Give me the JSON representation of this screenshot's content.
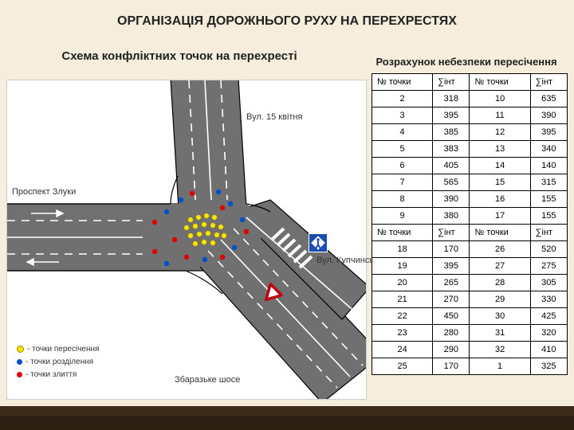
{
  "title": "ОРГАНІЗАЦІЯ ДОРОЖНЬОГО РУХУ НА ПЕРЕХРЕСТЯХ",
  "subtitle_left": "Схема конфліктних точок на перехресті",
  "subtitle_right": "Розрахунок небезпеки пересічення",
  "colors": {
    "page_bg": "#f6eddc",
    "road": "#707070",
    "road_edge": "#000000",
    "lane_line": "#ffffff",
    "point_crossing": "#f6e600",
    "point_diverge": "#0050c8",
    "point_merge": "#e00000",
    "sign_blue": "#1a4db3",
    "table_border": "#000000"
  },
  "streets": {
    "north": "Вул. 15 квітня",
    "west": "Проспект Злуки",
    "east": "Вул. Купчинського",
    "south": "Збаразьке шосе"
  },
  "legend": {
    "crossing": "- точки пересічення",
    "diverge": "- точки розділення",
    "merge": "- точки злиття"
  },
  "table": {
    "headers": [
      "№ точки",
      "∑інт",
      "№ точки",
      "∑інт"
    ],
    "block1": [
      [
        2,
        318,
        10,
        635
      ],
      [
        3,
        395,
        11,
        390
      ],
      [
        4,
        385,
        12,
        395
      ],
      [
        5,
        383,
        13,
        340
      ],
      [
        6,
        405,
        14,
        140
      ],
      [
        7,
        565,
        15,
        315
      ],
      [
        8,
        390,
        16,
        155
      ],
      [
        9,
        380,
        17,
        155
      ]
    ],
    "block2": [
      [
        18,
        170,
        26,
        520
      ],
      [
        19,
        395,
        27,
        275
      ],
      [
        20,
        265,
        28,
        305
      ],
      [
        21,
        270,
        29,
        330
      ],
      [
        22,
        450,
        30,
        425
      ],
      [
        23,
        280,
        31,
        320
      ],
      [
        24,
        290,
        32,
        410
      ],
      [
        25,
        170,
        1,
        325
      ]
    ]
  },
  "diagram_style": {
    "road_width_main": 84,
    "road_width_secondary": 56,
    "point_radius": 3.2,
    "line_width_edge": 1.2,
    "line_width_lane": 1.6
  }
}
